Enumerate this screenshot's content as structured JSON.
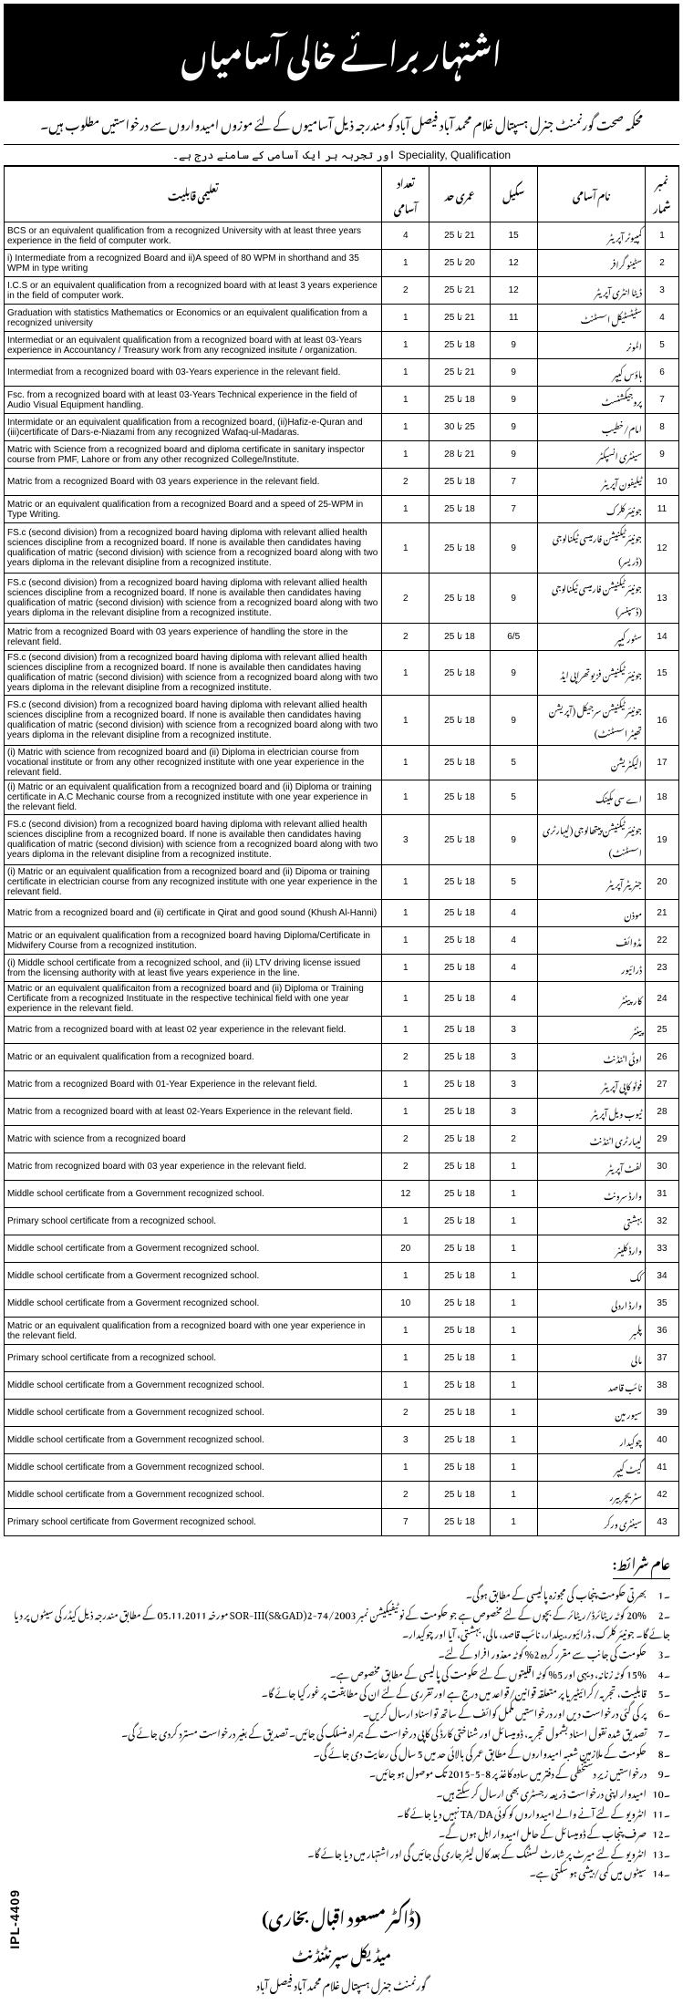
{
  "header": {
    "banner": "اشتہار برائے خالی آسامیاں",
    "sub": "محکمہ صحت گورنمنٹ جنرل ہسپتال غلام محمد آباد فیصل آباد کو مندرجہ ذیل آسامیوں کے لئے موزوں امیدواروں سے درخواستیں مطلوب ہیں۔",
    "speciality_ur": "اور تجربہ ہر ایک آسامی کے سامنے درج ہے۔",
    "speciality_en": "Speciality, Qualification"
  },
  "columns": {
    "qual": "تعلیمی قابلیت",
    "count": "تعداد آسامی",
    "age": "عمری حد",
    "scale": "سکیل",
    "title": "نام آسامی",
    "no": "نمبر شمار"
  },
  "rows": [
    {
      "no": 1,
      "title": "کمپیوٹر آپریٹر",
      "scale": 15,
      "age": "21 تا 25",
      "count": 4,
      "qual": "BCS or an equivalent qualification from a recognized University with at least three years experience in the field of computer work."
    },
    {
      "no": 2,
      "title": "سٹینو گرافر",
      "scale": 12,
      "age": "20 تا 25",
      "count": 1,
      "qual": "i) Intermediate from a recognized Board and\nii)A speed of 80 WPM in shorthand and 35 WPM in type writing"
    },
    {
      "no": 3,
      "title": "ڈیٹا انٹری آپریٹر",
      "scale": 12,
      "age": "21 تا 25",
      "count": 2,
      "qual": "I.C.S or an equivalent qualification from a recognized board with at least 3 years experience in the field of computer work."
    },
    {
      "no": 4,
      "title": "سٹیٹسٹیکل اسسٹنٹ",
      "scale": 11,
      "age": "21 تا 25",
      "count": 1,
      "qual": "Graduation with statistics Mathematics or Economics or an equivalent qualification from a recognized university"
    },
    {
      "no": 5,
      "title": "المونر",
      "scale": 9,
      "age": "18 تا 25",
      "count": 1,
      "qual": "Intermediat or an equivalent qualification from a recognized board with at least 03-Years experience in Accountancy / Treasury work from any recognized insitute / organization."
    },
    {
      "no": 6,
      "title": "ہاؤس کیپر",
      "scale": 9,
      "age": "21 تا 25",
      "count": 1,
      "qual": "Intermediat from a recognized board with 03-Years experience in the relevant field."
    },
    {
      "no": 7,
      "title": "پروجیکشنسٹ",
      "scale": 9,
      "age": "18 تا 25",
      "count": 1,
      "qual": "Fsc. from a recognized board with at least 03-Years Technical experience in the field of Audio Visual Equipment handling."
    },
    {
      "no": 8,
      "title": "امام/خطیب",
      "scale": 9,
      "age": "25 تا 30",
      "count": 1,
      "qual": "Intermidate or an equivalent qualification from a recognized board, (ii)Hafiz-e-Quran and (iii)certificate of Dars-e-Niazami from any recognized Wafaq-ul-Madaras."
    },
    {
      "no": 9,
      "title": "سینٹری انسپکٹر",
      "scale": 9,
      "age": "21 تا 28",
      "count": 1,
      "qual": "Matric with Science from a recognized board and diploma certificate in sanitary inspector course from PMF, Lahore or from any other recognized College/Institute."
    },
    {
      "no": 10,
      "title": "ٹیلیفون آپریٹر",
      "scale": 7,
      "age": "18 تا 25",
      "count": 2,
      "qual": "Matric from a recognized Board with 03 years experience in the relevant field."
    },
    {
      "no": 11,
      "title": "جونیئر کلرک",
      "scale": 7,
      "age": "18 تا 25",
      "count": 1,
      "qual": "Matric or an equivalent qualification from a recognized Board and a speed of 25-WPM in Type Writing."
    },
    {
      "no": 12,
      "title": "جونیئرٹیکنیشن فارمیسی ٹیکنالوجی (ڈریسر)",
      "scale": 9,
      "age": "18 تا 25",
      "count": 1,
      "qual": "FS.c (second division) from a recognized board having diploma with relevant allied health sciences discipline from a recognized board.\nIf none is available then candidates having qualification of matric (second division) with science from a recognized board along with two years diploma in the relevant disipline from a recognized institute."
    },
    {
      "no": 13,
      "title": "جونیئر ٹیکنیشن فارمیسی ٹیکنالوجی (ڈسپنسر)",
      "scale": 9,
      "age": "18 تا 25",
      "count": 2,
      "qual": "FS.c (second division) from a recognized board having diploma with relevant allied health sciences discipline from a recognized board.\nIf none is available then candidates having qualification of matric (second division) with science from a recognized board along with two years diploma in the relevant disipline from a recognized institute."
    },
    {
      "no": 14,
      "title": "سٹور کیپر",
      "scale": "6/5",
      "age": "18 تا 25",
      "count": 2,
      "qual": "Matric from a recognized Board with 03 years experience of handling the store in the relevant field."
    },
    {
      "no": 15,
      "title": "جونیئر ٹیکنیشن فزیوتھراپی ایڈ",
      "scale": 9,
      "age": "18 تا 25",
      "count": 1,
      "qual": "FS.c (second division) from a recognized board having diploma with relevant allied health sciences discipline from a recognized board.\nIf none is available then candidates having qualification of matric (second division) with science from a recognized board along with two years diploma in the relevant disipline from a recognized institute."
    },
    {
      "no": 16,
      "title": "جونیئر ٹیکنیشن سرجیکل (آپریشن تھیٹر اسسٹنٹ)",
      "scale": 9,
      "age": "18 تا 25",
      "count": 1,
      "qual": "FS.c (second division) from a recognized board having diploma with relevant allied health sciences discipline from a recognized board.\nIf none is available then candidates having qualification of matric (second division) with science from a recognized board along with two years diploma in the relevant disipline from a recognized institute."
    },
    {
      "no": 17,
      "title": "الیکٹریشن",
      "scale": 5,
      "age": "18 تا 25",
      "count": 1,
      "qual": "(i) Matric with science from recognized board and\n(ii) Diploma in electrician course from vocational institute or from any other recognized institute with one year experience in the relevant field."
    },
    {
      "no": 18,
      "title": "اے سی مکینک",
      "scale": 5,
      "age": "18 تا 25",
      "count": 1,
      "qual": "(i) Matric or an equivalent qualification from a recognized board and\n(ii) Diploma or training certificate in A.C Mechanic course from a recognized institute with one year experience in the relevant field."
    },
    {
      "no": 19,
      "title": "جونیئر ٹیکنیشن پیتھالوجی (لیبارٹری اسسٹنٹ)",
      "scale": 9,
      "age": "18 تا 25",
      "count": 3,
      "qual": "FS.c (second division) from a recognized board having diploma with relevant allied health sciences discipline from a recognized board.\nIf none is available then candidates having qualification of matric (second division) with science from a recognized board along with two years diploma in the relevant disipline from a recognized institute."
    },
    {
      "no": 20,
      "title": "جنریٹر آپریٹر",
      "scale": 5,
      "age": "18 تا 25",
      "count": 1,
      "qual": "(i) Matric or an equivalent qualification from a recognized board and\n(ii) Dipoma or training certificate in electrician course from any recognized institute with one year experience in the relevant field."
    },
    {
      "no": 21,
      "title": "موذن",
      "scale": 4,
      "age": "18 تا 25",
      "count": 1,
      "qual": "Matric from a recognized board and (ii) certificate in Qirat and good sound (Khush Al-Hanni)"
    },
    {
      "no": 22,
      "title": "مڈوائف",
      "scale": 4,
      "age": "18 تا 25",
      "count": 1,
      "qual": "Matric or an equivalent qualification from a recognized board having Diploma/Certificate in Midwifery Course from a recognized institution."
    },
    {
      "no": 23,
      "title": "ڈرائیور",
      "scale": 4,
      "age": "18 تا 25",
      "count": 1,
      "qual": "(i) Middle school certificate from a recognized school, and\n(ii) LTV driving license issued from the licensing authority with at least five years experience in the line."
    },
    {
      "no": 24,
      "title": "کارپینٹر",
      "scale": 4,
      "age": "18 تا 25",
      "count": 1,
      "qual": "Matric or an equivalent qualificaiton from a recognized board and (ii) Diploma or Training Certificate from a recognized Instituate in the respective techinical field with one year experience in the relevant field."
    },
    {
      "no": 25,
      "title": "پینٹر",
      "scale": 3,
      "age": "18 تا 25",
      "count": 1,
      "qual": "Matric from a recognized board with at least 02 year experience in the relevant field."
    },
    {
      "no": 26,
      "title": "اوٹی اٹنڈنٹ",
      "scale": 3,
      "age": "18 تا 25",
      "count": 2,
      "qual": "Matric or an equivalent qualification from a recognized board."
    },
    {
      "no": 27,
      "title": "فوٹو کاپی آپریٹر",
      "scale": 3,
      "age": "18 تا 25",
      "count": 1,
      "qual": "Matric from a recognized Board with 01-Year Experience in the relevant field."
    },
    {
      "no": 28,
      "title": "ٹیوب ویل آپریٹر",
      "scale": 3,
      "age": "18 تا 25",
      "count": 1,
      "qual": "Matric from a recognized board with at least 02-Years Experience in the relevant field."
    },
    {
      "no": 29,
      "title": "لیبارٹری اٹنڈنٹ",
      "scale": 2,
      "age": "18 تا 25",
      "count": 2,
      "qual": "Matric with science from a recognized board"
    },
    {
      "no": 30,
      "title": "لفٹ آپریٹر",
      "scale": 1,
      "age": "18 تا 25",
      "count": 2,
      "qual": "Matric from recognized board with 03 year experience in the relevant field."
    },
    {
      "no": 31,
      "title": "وارڈ سرونٹ",
      "scale": 1,
      "age": "18 تا 25",
      "count": 12,
      "qual": "Middle school certificate from a Government recognized school."
    },
    {
      "no": 32,
      "title": "بہشتی",
      "scale": 1,
      "age": "18 تا 25",
      "count": 1,
      "qual": "Primary school certificate from a recognized school."
    },
    {
      "no": 33,
      "title": "وارڈ کلینر",
      "scale": 1,
      "age": "18 تا 25",
      "count": 20,
      "qual": "Middle school certificate from a Goverment recognized school."
    },
    {
      "no": 34,
      "title": "کُک",
      "scale": 1,
      "age": "18 تا 25",
      "count": 1,
      "qual": "Middle school certificate from a Goverment recognized school."
    },
    {
      "no": 35,
      "title": "وارڈ اردلی",
      "scale": 1,
      "age": "18 تا 25",
      "count": 10,
      "qual": "Middle school certificate from a Goverment recognized school."
    },
    {
      "no": 36,
      "title": "پلمبر",
      "scale": 1,
      "age": "18 تا 25",
      "count": 1,
      "qual": "Matric or an equivalent qualification from a recognized board with one year experience in the relevant field."
    },
    {
      "no": 37,
      "title": "مالی",
      "scale": 1,
      "age": "18 تا 25",
      "count": 1,
      "qual": "Primary school certificate from a recognized school."
    },
    {
      "no": 38,
      "title": "نائب قاصد",
      "scale": 1,
      "age": "18 تا 25",
      "count": 1,
      "qual": "Middle school certificate from a Government recognized school."
    },
    {
      "no": 39,
      "title": "سیور مین",
      "scale": 1,
      "age": "18 تا 25",
      "count": 2,
      "qual": "Middle school certificate from a Government recognized school."
    },
    {
      "no": 40,
      "title": "چوکیدار",
      "scale": 1,
      "age": "18 تا 25",
      "count": 3,
      "qual": "Middle school certificate from a Government recognized school."
    },
    {
      "no": 41,
      "title": "گیٹ کیپر",
      "scale": 1,
      "age": "18 تا 25",
      "count": 1,
      "qual": "Middle school certificate from a Government recognized school."
    },
    {
      "no": 42,
      "title": "سٹریچر بیرر",
      "scale": 1,
      "age": "18 تا 25",
      "count": 2,
      "qual": "Middle school certificate from a Government recognized school."
    },
    {
      "no": 43,
      "title": "سینٹری ورکر",
      "scale": 1,
      "age": "18 تا 25",
      "count": 7,
      "qual": "Primary school certificate from Goverment recognized school."
    }
  ],
  "terms": {
    "heading": "عام شرائط:",
    "items": [
      "بھرتی حکومت پنجاب کی مجوزہ پالیسی کے مطابق ہوگی۔",
      "20% کوٹہ ریٹائرڈ/ریٹائر کے بچوں کے لئے مخصوص ہے جو حکومت کے نوٹیفیکیشن نمبر SOR-III(S&GAD)2-74/2003 مورخہ 05.11.2011 کے مطابق مندرجہ ذیل کیڈر کی سیٹوں پر دیا جائے گا۔ جونیئر کلرک، ڈرائیور، بیلدار، نائب قاصد، مالی، بہشتی، آیا اور چوکیدار۔",
      "حکومت کی جانب سے مقرر کردہ 2% کوٹہ معذور افراد کے لئے۔",
      "15% کوٹہ زنانہ، دیہی اور 5% کوٹہ اقلیتوں کے لئے حکومت کی پالیسی کے مطابق مخصوص ہے۔",
      "قابلیت، تجربہ/کرائیٹیریا پر متعلقہ قوانین/قواعد میں درج ہے اور تقرری کے لئے ان کی مطابقت پر غور کیا جائے گا۔",
      "پر کی گئی درخواست دیں اور درخواستیں مکمل کوائف کے ساتھ تواسناد ارسال کریں۔",
      "تصدیق شدہ نقول اسناد بشمول تجربہ، ڈومیسائل اور شناختی کارڈ کی کاپی درخواست کے ہمراہ منسلک کی جائیں۔ تصدیق کے بغیر درخواست مسترد کردی جائے گی۔",
      "حکومت کے ملازمین شعبہ امیدواروں کے مطابق عمر کی بالائی حد میں 5 سال کی رعایت دی جائے گی۔",
      "درخواستیں زیرِ دستخطی کے دفتر میں سادہ کاغذ پر 8-5-2015 تک موصول ہو جائیں۔",
      "امیدوار اپنی درخواست ذریعہ رجسٹری بھی ارسال کر سکتے ہیں۔",
      "انٹرویو کے لئے آنے والے امیدواروں کو کوئی TA/DA نہیں دیا جائے گا۔",
      "صرف پنجاب کے ڈومیسائل کے حامل امیدوار اہل ہوں گے۔",
      "انٹرویو کے لئے میرٹ پر شارٹ لسٹنگ کے بعد کال لیٹر جاری کی جائیں گی اور اشتہار میں دیا جائے گا۔",
      "سیٹوں میں کمی/بیشی ہو سکتی ہے۔"
    ]
  },
  "footer": {
    "name": "(ڈاکٹر مسعود اقبال بخاری)",
    "desig": "میڈیکل سپرنٹنڈنٹ",
    "loc": "گورنمنٹ جنرل ہسپتال غلام محمد آباد فیصل آباد",
    "ipl": "IPL-4409"
  }
}
